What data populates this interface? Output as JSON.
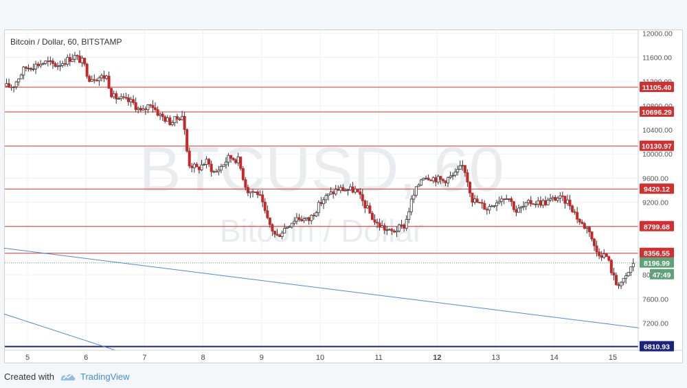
{
  "footer": {
    "created_with": "Created with",
    "brand": "TradingView"
  },
  "colors": {
    "up_candle": "#ffffff",
    "down_candle": "#c62828",
    "wick": "#333333",
    "level_line": "#d32f2f",
    "trend_line": "#4a8bd6",
    "support_line": "#1a237e",
    "last_price": "#5fa27a",
    "brand": "#3d8fd1"
  },
  "chart_data": {
    "type": "candlestick",
    "title": "Bitcoin / Dollar, 60, BITSTAMP",
    "watermark_symbol": "BTCUSD, 60",
    "watermark_name": "Bitcoin / Dollar",
    "x_ticks": [
      "5",
      "6",
      "7",
      "8",
      "9",
      "10",
      "11",
      "12",
      "13",
      "14",
      "15"
    ],
    "y_ticks": [
      "12000.00",
      "11600.00",
      "11200.00",
      "10800.00",
      "10400.00",
      "10000.00",
      "9600.00",
      "9200.00",
      "8800.00",
      "8400.00",
      "8000.00",
      "7600.00",
      "7200.00"
    ],
    "ylim": [
      6750,
      12050
    ],
    "price_levels": [
      11105.4,
      10696.29,
      10130.97,
      9420.12,
      8799.68,
      8356.55
    ],
    "price_level_labels": [
      "11105.40",
      "10696.29",
      "10130.97",
      "9420.12",
      "8799.68",
      "8356.55"
    ],
    "support_level": 6810.93,
    "support_level_label": "6810.93",
    "last_price": 8196.99,
    "last_price_label": "8196.99",
    "countdown_label": "47:49",
    "x_range": [
      4.6,
      15.5
    ],
    "trend_lines": [
      {
        "x1": 4.6,
        "y1": 8440,
        "x2": 15.45,
        "y2": 7120
      },
      {
        "x1": 4.6,
        "y1": 7350,
        "x2": 6.5,
        "y2": 6750
      }
    ],
    "price_path": [
      [
        4.6,
        11120
      ],
      [
        4.75,
        11120
      ],
      [
        4.95,
        11420
      ],
      [
        5.3,
        11520
      ],
      [
        5.5,
        11470
      ],
      [
        5.8,
        11620
      ],
      [
        5.95,
        11520
      ],
      [
        6.05,
        11260
      ],
      [
        6.35,
        11280
      ],
      [
        6.45,
        10950
      ],
      [
        6.8,
        10850
      ],
      [
        6.95,
        10680
      ],
      [
        7.1,
        10850
      ],
      [
        7.25,
        10650
      ],
      [
        7.45,
        10520
      ],
      [
        7.65,
        10650
      ],
      [
        7.75,
        9850
      ],
      [
        7.9,
        9750
      ],
      [
        8.05,
        9880
      ],
      [
        8.2,
        9680
      ],
      [
        8.45,
        9950
      ],
      [
        8.6,
        9900
      ],
      [
        8.75,
        9400
      ],
      [
        8.95,
        9350
      ],
      [
        9.1,
        8900
      ],
      [
        9.25,
        8620
      ],
      [
        9.4,
        8780
      ],
      [
        9.6,
        8950
      ],
      [
        9.8,
        8900
      ],
      [
        10.05,
        9250
      ],
      [
        10.3,
        9420
      ],
      [
        10.6,
        9400
      ],
      [
        10.8,
        9100
      ],
      [
        10.95,
        8850
      ],
      [
        11.05,
        8800
      ],
      [
        11.2,
        8700
      ],
      [
        11.45,
        8820
      ],
      [
        11.55,
        9200
      ],
      [
        11.75,
        9650
      ],
      [
        12.1,
        9560
      ],
      [
        12.3,
        9650
      ],
      [
        12.45,
        9820
      ],
      [
        12.6,
        9250
      ],
      [
        12.85,
        9100
      ],
      [
        13.05,
        9250
      ],
      [
        13.2,
        9320
      ],
      [
        13.35,
        9050
      ],
      [
        13.6,
        9200
      ],
      [
        13.85,
        9200
      ],
      [
        14.05,
        9280
      ],
      [
        14.25,
        9200
      ],
      [
        14.45,
        8850
      ],
      [
        14.6,
        8750
      ],
      [
        14.7,
        8400
      ],
      [
        14.9,
        8300
      ],
      [
        15.05,
        7850
      ],
      [
        15.2,
        7900
      ],
      [
        15.35,
        8197
      ]
    ]
  }
}
